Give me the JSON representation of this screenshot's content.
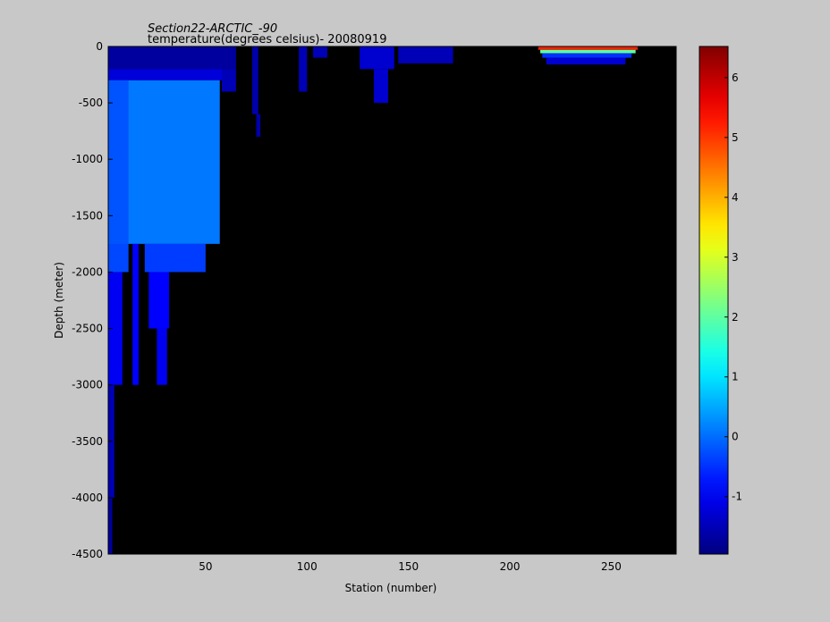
{
  "chart_data": {
    "type": "section",
    "title": "Section22-ARCTIC_-90",
    "subtitle": "temperature(degrees celsius)- 20080919",
    "xlabel": "Station (number)",
    "ylabel": "Depth (meter)",
    "xlim": [
      2,
      282
    ],
    "xticks": [
      50,
      100,
      150,
      200,
      250
    ],
    "ylim": [
      -4500,
      0
    ],
    "yticks": [
      0,
      -500,
      -1000,
      -1500,
      -2000,
      -2500,
      -3000,
      -3500,
      -4000,
      -4500
    ],
    "clim": [
      -1.96,
      6.52
    ],
    "cticks": [
      -1,
      0,
      1,
      2,
      3,
      4,
      5,
      6
    ],
    "colormap": "jet",
    "background": "#000000",
    "cells": [
      {
        "x": [
          2,
          65
        ],
        "depth": [
          0,
          -200
        ],
        "value": -1.7
      },
      {
        "x": [
          2,
          58
        ],
        "depth": [
          -200,
          -300
        ],
        "value": -1.2
      },
      {
        "x": [
          2,
          57
        ],
        "depth": [
          -300,
          -1750
        ],
        "value": 0.1
      },
      {
        "x": [
          2,
          12
        ],
        "depth": [
          -300,
          -1750
        ],
        "value": -0.2
      },
      {
        "x": [
          2,
          12
        ],
        "depth": [
          -1750,
          -2000
        ],
        "value": -0.3
      },
      {
        "x": [
          20,
          50
        ],
        "depth": [
          -1750,
          -2000
        ],
        "value": -0.4
      },
      {
        "x": [
          2,
          9
        ],
        "depth": [
          -2000,
          -3000
        ],
        "value": -1.0
      },
      {
        "x": [
          14,
          17
        ],
        "depth": [
          -1750,
          -3000
        ],
        "value": -0.9
      },
      {
        "x": [
          22,
          32
        ],
        "depth": [
          -2000,
          -2500
        ],
        "value": -0.9
      },
      {
        "x": [
          26,
          31
        ],
        "depth": [
          -2500,
          -3000
        ],
        "value": -1.0
      },
      {
        "x": [
          2,
          5
        ],
        "depth": [
          -3000,
          -4000
        ],
        "value": -1.5
      },
      {
        "x": [
          2,
          4
        ],
        "depth": [
          -4000,
          -4500
        ],
        "value": -1.7
      },
      {
        "x": [
          58,
          65
        ],
        "depth": [
          -200,
          -400
        ],
        "value": -1.5
      },
      {
        "x": [
          73,
          76
        ],
        "depth": [
          0,
          -600
        ],
        "value": -1.6
      },
      {
        "x": [
          75,
          77
        ],
        "depth": [
          -600,
          -800
        ],
        "value": -1.6
      },
      {
        "x": [
          96,
          100
        ],
        "depth": [
          0,
          -400
        ],
        "value": -1.5
      },
      {
        "x": [
          103,
          110
        ],
        "depth": [
          0,
          -100
        ],
        "value": -1.5
      },
      {
        "x": [
          126,
          143
        ],
        "depth": [
          0,
          -200
        ],
        "value": -1.3
      },
      {
        "x": [
          133,
          140
        ],
        "depth": [
          -200,
          -500
        ],
        "value": -1.3
      },
      {
        "x": [
          145,
          172
        ],
        "depth": [
          0,
          -150
        ],
        "value": -1.5
      },
      {
        "x": [
          214,
          263
        ],
        "depth": [
          0,
          -30
        ],
        "value": 5.2
      },
      {
        "x": [
          215,
          262
        ],
        "depth": [
          -30,
          -60
        ],
        "value": 2.0
      },
      {
        "x": [
          216,
          260
        ],
        "depth": [
          -60,
          -100
        ],
        "value": -0.5
      },
      {
        "x": [
          218,
          257
        ],
        "depth": [
          -100,
          -160
        ],
        "value": -1.3
      }
    ]
  }
}
